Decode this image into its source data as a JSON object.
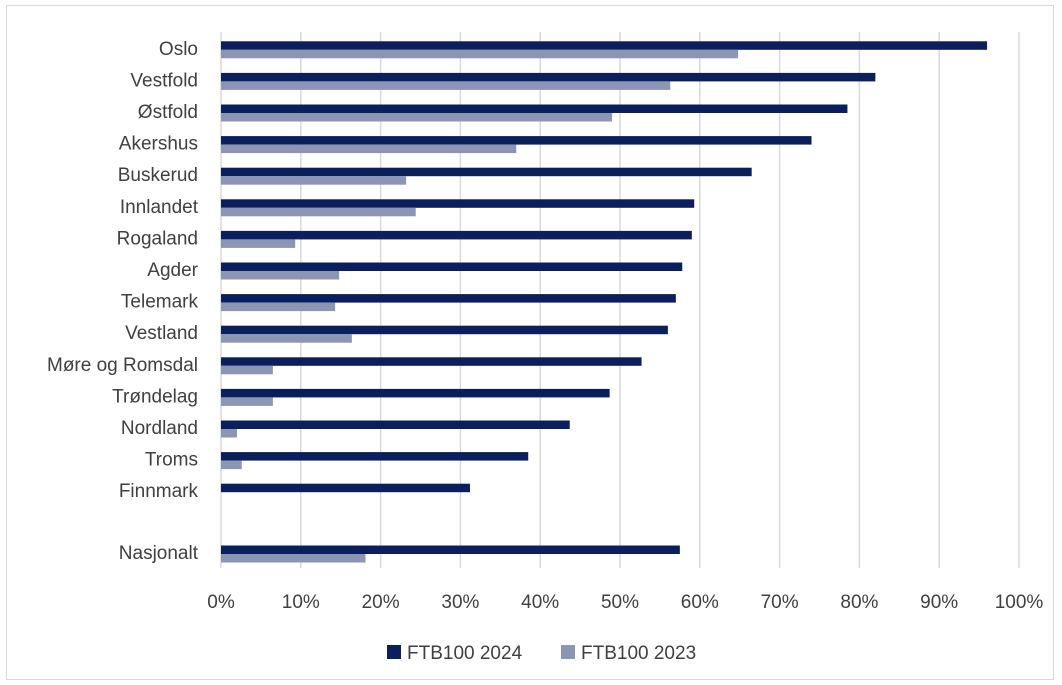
{
  "chart_data": {
    "type": "bar",
    "orientation": "horizontal",
    "title": "",
    "xlabel": "",
    "ylabel": "",
    "xlim": [
      0,
      1
    ],
    "grid": true,
    "legend_position": "bottom",
    "categories": [
      "Oslo",
      "Vestfold",
      "Østfold",
      "Akershus",
      "Buskerud",
      "Innlandet",
      "Rogaland",
      "Agder",
      "Telemark",
      "Vestland",
      "Møre og Romsdal",
      "Trøndelag",
      "Nordland",
      "Troms",
      "Finnmark",
      "Nasjonalt"
    ],
    "x_ticks": [
      "0%",
      "10%",
      "20%",
      "30%",
      "40%",
      "50%",
      "60%",
      "70%",
      "80%",
      "90%",
      "100%"
    ],
    "series": [
      {
        "name": "FTB100 2024",
        "color": "#0b1f5c",
        "values": [
          0.96,
          0.82,
          0.785,
          0.74,
          0.665,
          0.593,
          0.59,
          0.578,
          0.57,
          0.56,
          0.527,
          0.487,
          0.437,
          0.385,
          0.312,
          0.575
        ]
      },
      {
        "name": "FTB100 2023",
        "color": "#8a96b4",
        "values": [
          0.648,
          0.563,
          0.49,
          0.37,
          0.232,
          0.244,
          0.093,
          0.148,
          0.143,
          0.164,
          0.065,
          0.065,
          0.02,
          0.026,
          0.0,
          0.181
        ]
      }
    ]
  }
}
